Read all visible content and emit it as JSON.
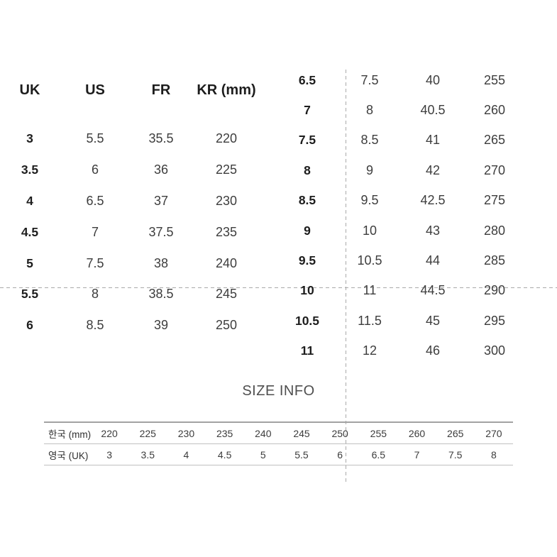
{
  "size_chart": {
    "headers": [
      "UK",
      "US",
      "FR",
      "KR (mm)"
    ],
    "left_rows": [
      [
        "3",
        "5.5",
        "35.5",
        "220"
      ],
      [
        "3.5",
        "6",
        "36",
        "225"
      ],
      [
        "4",
        "6.5",
        "37",
        "230"
      ],
      [
        "4.5",
        "7",
        "37.5",
        "235"
      ],
      [
        "5",
        "7.5",
        "38",
        "240"
      ],
      [
        "5.5",
        "8",
        "38.5",
        "245"
      ],
      [
        "6",
        "8.5",
        "39",
        "250"
      ]
    ],
    "right_rows": [
      [
        "6.5",
        "7.5",
        "40",
        "255"
      ],
      [
        "7",
        "8",
        "40.5",
        "260"
      ],
      [
        "7.5",
        "8.5",
        "41",
        "265"
      ],
      [
        "8",
        "9",
        "42",
        "270"
      ],
      [
        "8.5",
        "9.5",
        "42.5",
        "275"
      ],
      [
        "9",
        "10",
        "43",
        "280"
      ],
      [
        "9.5",
        "10.5",
        "44",
        "285"
      ],
      [
        "10",
        "11",
        "44.5",
        "290"
      ],
      [
        "10.5",
        "11.5",
        "45",
        "295"
      ],
      [
        "11",
        "12",
        "46",
        "300"
      ]
    ]
  },
  "size_info": {
    "title": "SIZE INFO",
    "rows": [
      {
        "label": "한국 (mm)",
        "values": [
          "220",
          "225",
          "230",
          "235",
          "240",
          "245",
          "250",
          "255",
          "260",
          "265",
          "270"
        ]
      },
      {
        "label": "영국 (UK)",
        "values": [
          "3",
          "3.5",
          "4",
          "4.5",
          "5",
          "5.5",
          "6",
          "6.5",
          "7",
          "7.5",
          "8"
        ]
      }
    ]
  },
  "colors": {
    "background": "#ffffff",
    "header_text": "#1d1d1d",
    "body_text": "#3d3d3d",
    "title_text": "#4f4f4f",
    "guide_dash": "#a9a9a9",
    "table_border": "#c0c0c0",
    "table_border_top": "#a2a2a2"
  }
}
